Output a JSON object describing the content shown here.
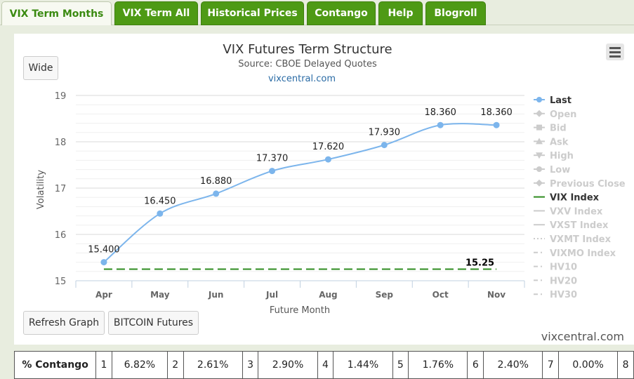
{
  "tabs": [
    {
      "label": "VIX Term Months",
      "active": true
    },
    {
      "label": "VIX Term All",
      "active": false
    },
    {
      "label": "Historical Prices",
      "active": false
    },
    {
      "label": "Contango",
      "active": false
    },
    {
      "label": "Help",
      "active": false
    },
    {
      "label": "Blogroll",
      "active": false
    }
  ],
  "buttons": {
    "wide": "Wide",
    "refresh": "Refresh Graph",
    "bitcoin": "BITCOIN Futures"
  },
  "credit": "vixcentral.com",
  "colors": {
    "tab_green": "#4e9a15",
    "last_series": "#7cb5ec",
    "vix_index": "#2e8b1f",
    "legend_inactive": "#cccccc"
  },
  "chart_data": {
    "type": "line",
    "title": "VIX Futures Term Structure",
    "subtitle": "Source: CBOE Delayed Quotes",
    "subtitle_link": "vixcentral.com",
    "xlabel": "Future Month",
    "ylabel": "Volatility",
    "categories": [
      "Apr",
      "May",
      "Jun",
      "Jul",
      "Aug",
      "Sep",
      "Oct",
      "Nov"
    ],
    "ylim": [
      15,
      19
    ],
    "yticks": [
      15,
      16,
      17,
      18,
      19
    ],
    "grid": true,
    "legend_position": "right",
    "series": [
      {
        "name": "Last",
        "values": [
          15.4,
          16.45,
          16.88,
          17.37,
          17.62,
          17.93,
          18.36,
          18.36
        ],
        "labels": [
          "15.400",
          "16.450",
          "16.880",
          "17.370",
          "17.620",
          "17.930",
          "18.360",
          "18.360"
        ],
        "color": "#7cb5ec"
      },
      {
        "name": "VIX Index",
        "value": 15.25,
        "label": "15.25",
        "color": "#2e8b1f",
        "style": "dashed"
      }
    ],
    "legend": [
      {
        "name": "Last",
        "marker": "circle",
        "active": true
      },
      {
        "name": "Open",
        "marker": "diamond",
        "active": false
      },
      {
        "name": "Bid",
        "marker": "square",
        "active": false
      },
      {
        "name": "Ask",
        "marker": "triangle",
        "active": false
      },
      {
        "name": "High",
        "marker": "triangle-down",
        "active": false
      },
      {
        "name": "Low",
        "marker": "circle",
        "active": false
      },
      {
        "name": "Previous Close",
        "marker": "diamond",
        "active": false
      },
      {
        "name": "VIX Index",
        "marker": "line",
        "active": true
      },
      {
        "name": "VXV Index",
        "marker": "line",
        "active": false
      },
      {
        "name": "VXST Index",
        "marker": "line",
        "active": false
      },
      {
        "name": "VXMT Index",
        "marker": "dot",
        "active": false
      },
      {
        "name": "VIXMO Index",
        "marker": "dashdot",
        "active": false
      },
      {
        "name": "HV10",
        "marker": "dashdot",
        "active": false
      },
      {
        "name": "HV20",
        "marker": "dashdot",
        "active": false
      },
      {
        "name": "HV30",
        "marker": "dashdot",
        "active": false
      }
    ]
  },
  "contango_table": {
    "header": "% Contango",
    "cells": [
      {
        "month": "1",
        "value": "6.82%"
      },
      {
        "month": "2",
        "value": "2.61%"
      },
      {
        "month": "3",
        "value": "2.90%"
      },
      {
        "month": "4",
        "value": "1.44%"
      },
      {
        "month": "5",
        "value": "1.76%"
      },
      {
        "month": "6",
        "value": "2.40%"
      },
      {
        "month": "7",
        "value": "0.00%"
      },
      {
        "month": "8",
        "value": ""
      }
    ]
  }
}
